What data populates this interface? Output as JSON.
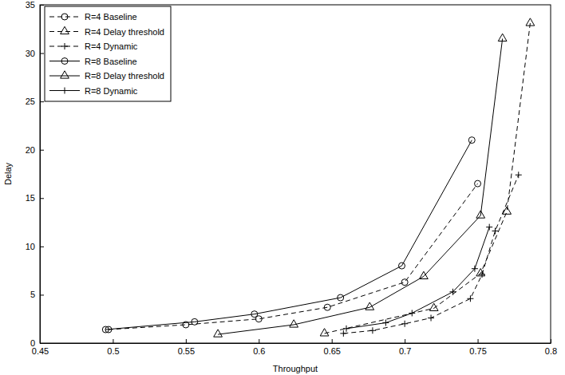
{
  "chart_data": {
    "type": "line",
    "x_label": "Throughput",
    "y_label": "Delay",
    "xlim": [
      0.45,
      0.8
    ],
    "xticks": [
      0.45,
      0.5,
      0.55,
      0.6,
      0.65,
      0.7,
      0.75,
      0.8
    ],
    "ylim": [
      0,
      35
    ],
    "yticks": [
      0,
      5,
      10,
      15,
      20,
      25,
      30,
      35
    ],
    "grid": false,
    "legend": "upper left",
    "series": [
      {
        "name": "R=4 Baseline",
        "color": "#000000",
        "marker": "circle",
        "line_style": "dashed",
        "x": [
          0.497,
          0.55,
          0.6,
          0.647,
          0.7,
          0.75
        ],
        "values": [
          1.4,
          1.9,
          2.5,
          3.7,
          6.3,
          16.5
        ]
      },
      {
        "name": "R=4 Delay threshold",
        "color": "#000000",
        "marker": "triangle",
        "line_style": "dashed",
        "x": [
          0.645,
          0.72,
          0.752,
          0.77,
          0.786
        ],
        "values": [
          1.0,
          3.6,
          7.2,
          13.6,
          33.1
        ]
      },
      {
        "name": "R=4 Dynamic",
        "color": "#000000",
        "marker": "plus",
        "line_style": "dashed",
        "x": [
          0.658,
          0.678,
          0.7,
          0.718,
          0.745,
          0.753,
          0.762,
          0.778
        ],
        "values": [
          1.0,
          1.3,
          2.0,
          2.6,
          4.6,
          7.1,
          11.6,
          17.4
        ]
      },
      {
        "name": "R=8 Baseline",
        "color": "#000000",
        "marker": "circle",
        "line_style": "solid",
        "x": [
          0.495,
          0.556,
          0.597,
          0.656,
          0.698,
          0.746
        ],
        "values": [
          1.4,
          2.2,
          3.0,
          4.7,
          8.0,
          21.0
        ]
      },
      {
        "name": "R=8 Delay threshold",
        "color": "#000000",
        "marker": "triangle",
        "line_style": "solid",
        "x": [
          0.572,
          0.624,
          0.676,
          0.713,
          0.752,
          0.767
        ],
        "values": [
          0.9,
          1.9,
          3.7,
          6.9,
          13.2,
          31.5
        ]
      },
      {
        "name": "R=8 Dynamic",
        "color": "#000000",
        "marker": "plus",
        "line_style": "solid",
        "x": [
          0.66,
          0.687,
          0.705,
          0.733,
          0.748,
          0.758
        ],
        "values": [
          1.5,
          2.1,
          3.1,
          5.3,
          7.7,
          12.0
        ]
      }
    ]
  }
}
